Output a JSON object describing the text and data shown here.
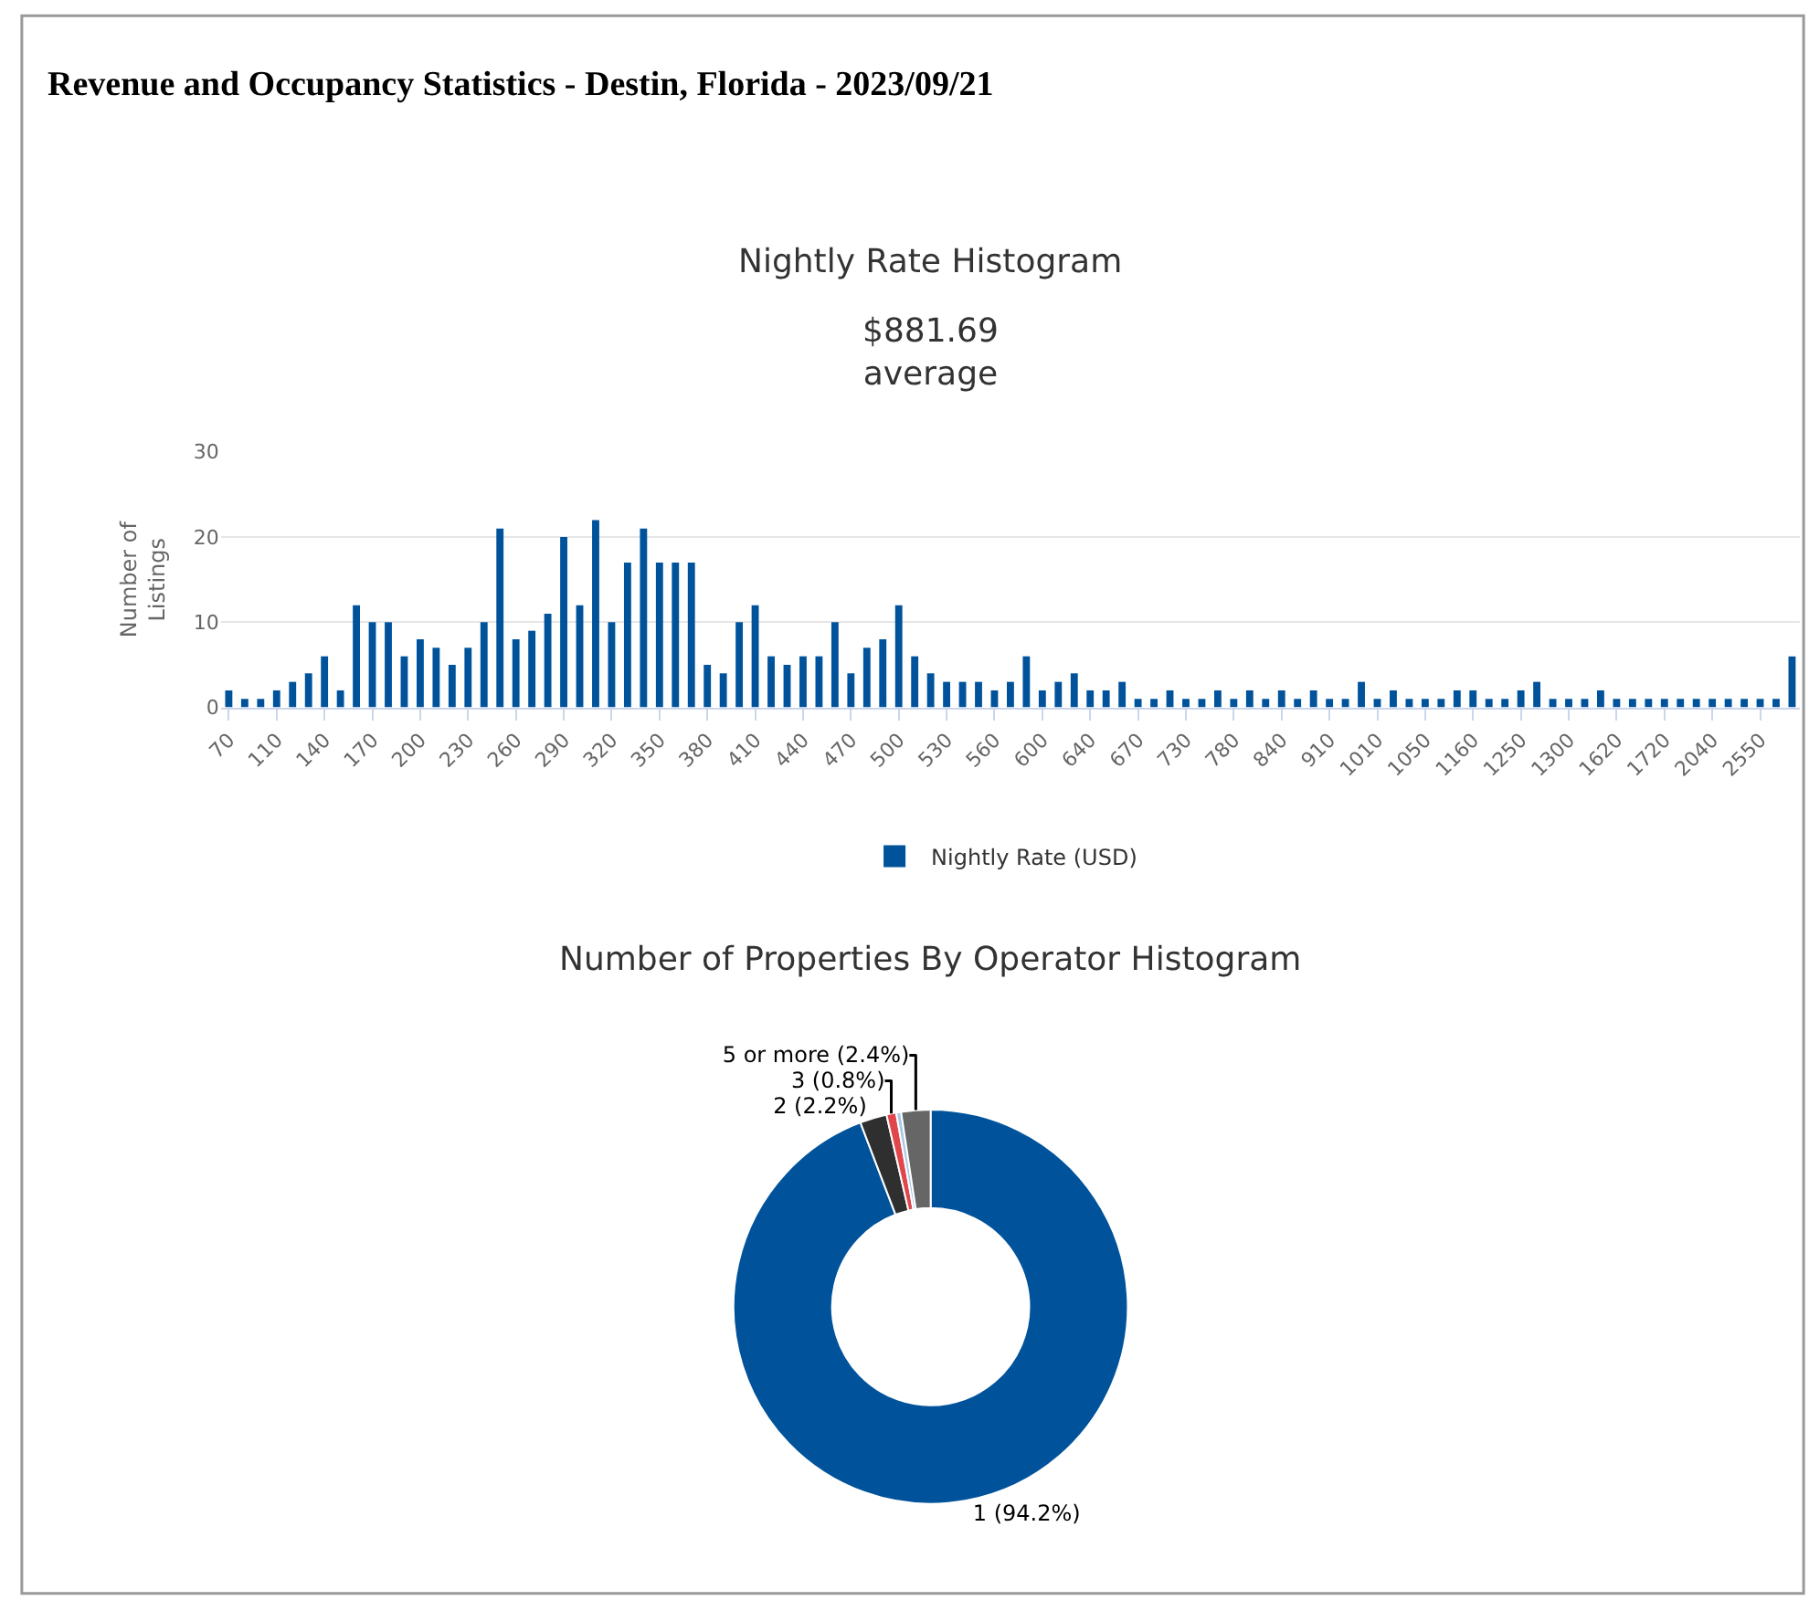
{
  "chart_data": [
    {
      "type": "bar",
      "title": "Nightly Rate Histogram",
      "subtitle": "$881.69\naverage",
      "ylabel": "Number of\nListings",
      "annotations": [
        "Revenue and Occupancy Statistics - Destin, Florida - 2023/09/21"
      ],
      "categories": [
        "70",
        null,
        null,
        "110",
        null,
        null,
        "140",
        null,
        null,
        "170",
        null,
        null,
        "200",
        null,
        null,
        "230",
        null,
        null,
        "260",
        null,
        null,
        "290",
        null,
        null,
        "320",
        null,
        null,
        "350",
        null,
        null,
        "380",
        null,
        null,
        "410",
        null,
        null,
        "440",
        null,
        null,
        "470",
        null,
        null,
        "500",
        null,
        null,
        "530",
        null,
        null,
        "560",
        null,
        null,
        "600",
        null,
        null,
        "640",
        null,
        null,
        "670",
        null,
        null,
        "730",
        null,
        null,
        "780",
        null,
        null,
        "840",
        null,
        null,
        "910",
        null,
        null,
        "1010",
        null,
        null,
        "1050",
        null,
        null,
        "1160",
        null,
        null,
        "1250",
        null,
        null,
        "1300",
        null,
        null,
        "1620",
        null,
        null,
        "1720",
        null,
        null,
        "2040",
        null,
        null,
        "2550",
        null,
        null
      ],
      "series": [
        {
          "name": "Nightly Rate (USD)",
          "color": "#00539b",
          "values": [
            2,
            1,
            1,
            2,
            3,
            4,
            6,
            2,
            12,
            10,
            10,
            6,
            8,
            7,
            5,
            7,
            10,
            21,
            8,
            9,
            11,
            20,
            12,
            22,
            10,
            17,
            21,
            17,
            17,
            17,
            5,
            4,
            10,
            12,
            6,
            5,
            6,
            6,
            10,
            4,
            7,
            8,
            12,
            6,
            4,
            3,
            3,
            3,
            2,
            3,
            6,
            2,
            3,
            4,
            2,
            2,
            3,
            1,
            1,
            2,
            1,
            1,
            2,
            1,
            2,
            1,
            2,
            1,
            2,
            1,
            1,
            3,
            1,
            2,
            1,
            1,
            1,
            2,
            2,
            1,
            1,
            2,
            3,
            1,
            1,
            1,
            2,
            1,
            1,
            1,
            1,
            1,
            1,
            1,
            1,
            1,
            1,
            1,
            6
          ]
        }
      ],
      "ylim": [
        0,
        30
      ],
      "yticks": [
        0,
        10,
        20,
        30
      ],
      "grid": "y",
      "legend": "bottom"
    },
    {
      "type": "donut",
      "title": "Number of Properties By Operator Histogram",
      "categories": [
        "1",
        "2",
        "3",
        null,
        "5 or more"
      ],
      "values": [
        94.2,
        2.2,
        0.8,
        0.4,
        2.4
      ],
      "value_labels": [
        "(94.2%)",
        "(2.2%)",
        "(0.8%)",
        null,
        "(2.4%)"
      ],
      "colors": [
        "#00539b",
        "#2f2f2f",
        "#e0474c",
        "#a6c8e8",
        "#666666"
      ]
    }
  ]
}
